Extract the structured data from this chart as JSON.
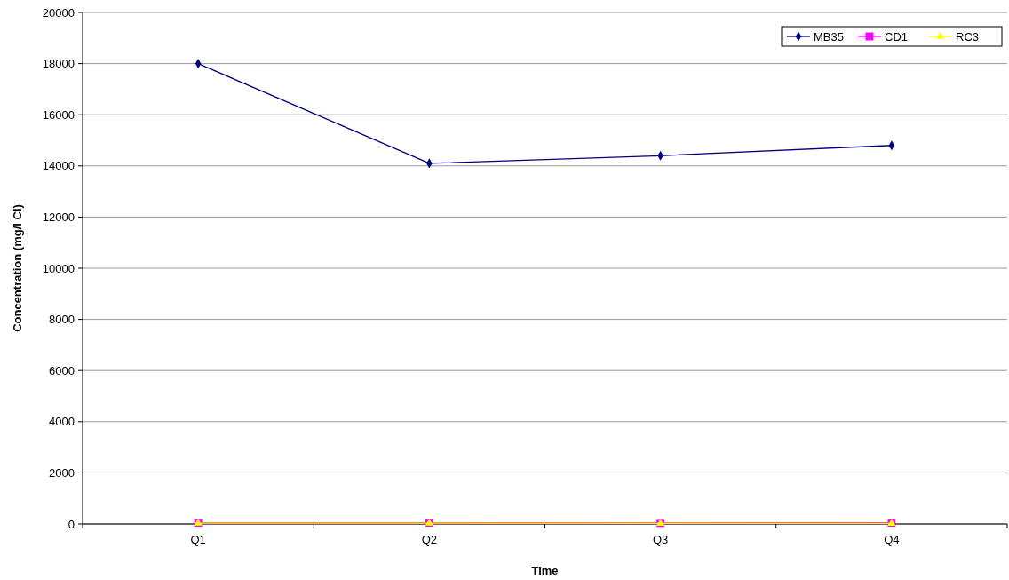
{
  "chart_data": {
    "type": "line",
    "xlabel": "Time",
    "ylabel": "Concentration (mg/l Cl)",
    "categories": [
      "Q1",
      "Q2",
      "Q3",
      "Q4"
    ],
    "series": [
      {
        "name": "MB35",
        "color": "#000080",
        "marker": "diamond",
        "values": [
          18000,
          14100,
          14400,
          14800
        ]
      },
      {
        "name": "CD1",
        "color": "#ff00ff",
        "marker": "square",
        "values": [
          50,
          50,
          40,
          50
        ]
      },
      {
        "name": "RC3",
        "color": "#ffff00",
        "marker": "triangle",
        "values": [
          30,
          30,
          20,
          20
        ]
      }
    ],
    "ylim": [
      0,
      20000
    ],
    "yticks": [
      0,
      2000,
      4000,
      6000,
      8000,
      10000,
      12000,
      14000,
      16000,
      18000,
      20000
    ],
    "grid": "y",
    "legend": "top right",
    "line_style": "solid"
  }
}
